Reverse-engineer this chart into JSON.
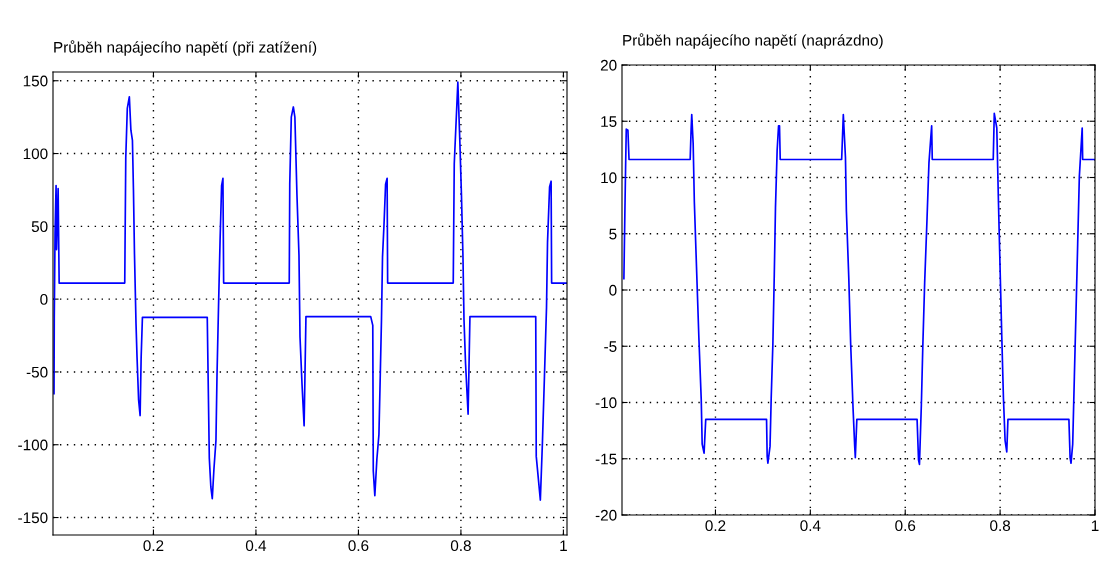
{
  "chart_data": [
    {
      "type": "line",
      "title": "Průběh napájecího napětí (při zatížení)",
      "xlim": [
        0.004,
        1.007
      ],
      "xticks": [
        0.2,
        0.4,
        0.6,
        0.8,
        1
      ],
      "ylim": [
        -162,
        156
      ],
      "yticks": [
        -150,
        -100,
        -50,
        0,
        50,
        100,
        150
      ],
      "grid": true,
      "line_style": "solid",
      "marker": "none",
      "series": [
        {
          "color": "#0000ff",
          "x": [
            0.006,
            0.0065,
            0.008,
            0.01,
            0.011,
            0.014,
            0.016,
            0.144,
            0.146,
            0.149,
            0.153,
            0.156,
            0.159,
            0.161,
            0.163,
            0.166,
            0.168,
            0.171,
            0.174,
            0.176,
            0.1785,
            0.305,
            0.309,
            0.312,
            0.3148,
            0.318,
            0.322,
            0.324,
            0.327,
            0.33,
            0.333,
            0.3356,
            0.337,
            0.465,
            0.466,
            0.469,
            0.473,
            0.476,
            0.48,
            0.484,
            0.486,
            0.49,
            0.494,
            0.4976,
            0.624,
            0.628,
            0.629,
            0.632,
            0.636,
            0.64,
            0.642,
            0.645,
            0.647,
            0.65,
            0.653,
            0.656,
            0.657,
            0.785,
            0.787,
            0.794,
            0.798,
            0.801,
            0.804,
            0.806,
            0.809,
            0.814,
            0.8176,
            0.946,
            0.947,
            0.955,
            0.959,
            0.963,
            0.967,
            0.969,
            0.973,
            0.976,
            0.977,
            1.007
          ],
          "values": [
            -65,
            -12,
            45,
            78,
            34,
            76,
            11,
            11,
            97,
            131,
            139,
            116,
            109,
            75,
            31,
            -17,
            -40,
            -69,
            -80,
            -40,
            -12.5,
            -12.5,
            -109,
            -129,
            -137,
            -117,
            -97,
            -53,
            -5,
            40,
            78,
            83,
            11,
            11,
            79,
            125,
            132,
            125,
            72,
            30,
            -26,
            -59,
            -87,
            -12,
            -12,
            -18,
            -118,
            -135,
            -110,
            -93,
            -62,
            -14,
            29,
            52,
            79,
            83,
            11,
            11,
            93,
            149,
            107,
            72,
            29,
            -14,
            -44,
            -79,
            -12,
            -12,
            -108,
            -138,
            -99,
            -53,
            -6,
            39,
            77,
            81,
            11,
            11
          ]
        }
      ]
    },
    {
      "type": "line",
      "title": "Průběh napájecího napětí (naprázdno)",
      "xlim": [
        0.003,
        1.0
      ],
      "xticks": [
        0.2,
        0.4,
        0.6,
        0.8,
        1
      ],
      "ylim": [
        -20,
        20
      ],
      "yticks": [
        -20,
        -15,
        -10,
        -5,
        0,
        5,
        10,
        15,
        20
      ],
      "grid": true,
      "line_style": "solid",
      "marker": "none",
      "series": [
        {
          "color": "#0000ff",
          "x": [
            0.007,
            0.009,
            0.0105,
            0.012,
            0.0155,
            0.0178,
            0.1467,
            0.1487,
            0.15,
            0.153,
            0.1555,
            0.16,
            0.165,
            0.17,
            0.172,
            0.176,
            0.1795,
            0.3077,
            0.309,
            0.3105,
            0.315,
            0.3175,
            0.321,
            0.324,
            0.3265,
            0.33,
            0.333,
            0.335,
            0.3365,
            0.466,
            0.4695,
            0.474,
            0.476,
            0.481,
            0.485,
            0.49,
            0.4935,
            0.4948,
            0.498,
            0.625,
            0.628,
            0.63,
            0.634,
            0.637,
            0.641,
            0.646,
            0.65,
            0.6557,
            0.657,
            0.7855,
            0.7877,
            0.793,
            0.7965,
            0.8,
            0.8035,
            0.807,
            0.8105,
            0.814,
            0.8165,
            0.945,
            0.9475,
            0.9495,
            0.953,
            0.9565,
            0.96,
            0.9635,
            0.967,
            0.973,
            0.974,
            1.0
          ],
          "values": [
            1,
            6.7,
            10.7,
            14.3,
            14.2,
            11.6,
            11.6,
            14.3,
            15.6,
            13,
            7.8,
            2.1,
            -4.2,
            -9.7,
            -13.7,
            -14.5,
            -11.5,
            -11.5,
            -14.8,
            -15.4,
            -13.9,
            -9.6,
            -4.8,
            1.4,
            7.3,
            12.4,
            14.6,
            14.6,
            11.6,
            11.6,
            15.6,
            11.8,
            7,
            1.1,
            -4.8,
            -10.5,
            -13.9,
            -14.9,
            -11.5,
            -11.5,
            -15.1,
            -15.5,
            -10.2,
            -5.1,
            0.7,
            6.4,
            11.3,
            14.6,
            11.6,
            11.6,
            15.7,
            14.4,
            7.8,
            1.8,
            -4.1,
            -9.6,
            -13.4,
            -14.4,
            -11.5,
            -11.5,
            -14.9,
            -15.4,
            -13.7,
            -7.7,
            -1.9,
            4.1,
            10.1,
            14.4,
            11.6,
            11.6
          ]
        }
      ]
    }
  ]
}
